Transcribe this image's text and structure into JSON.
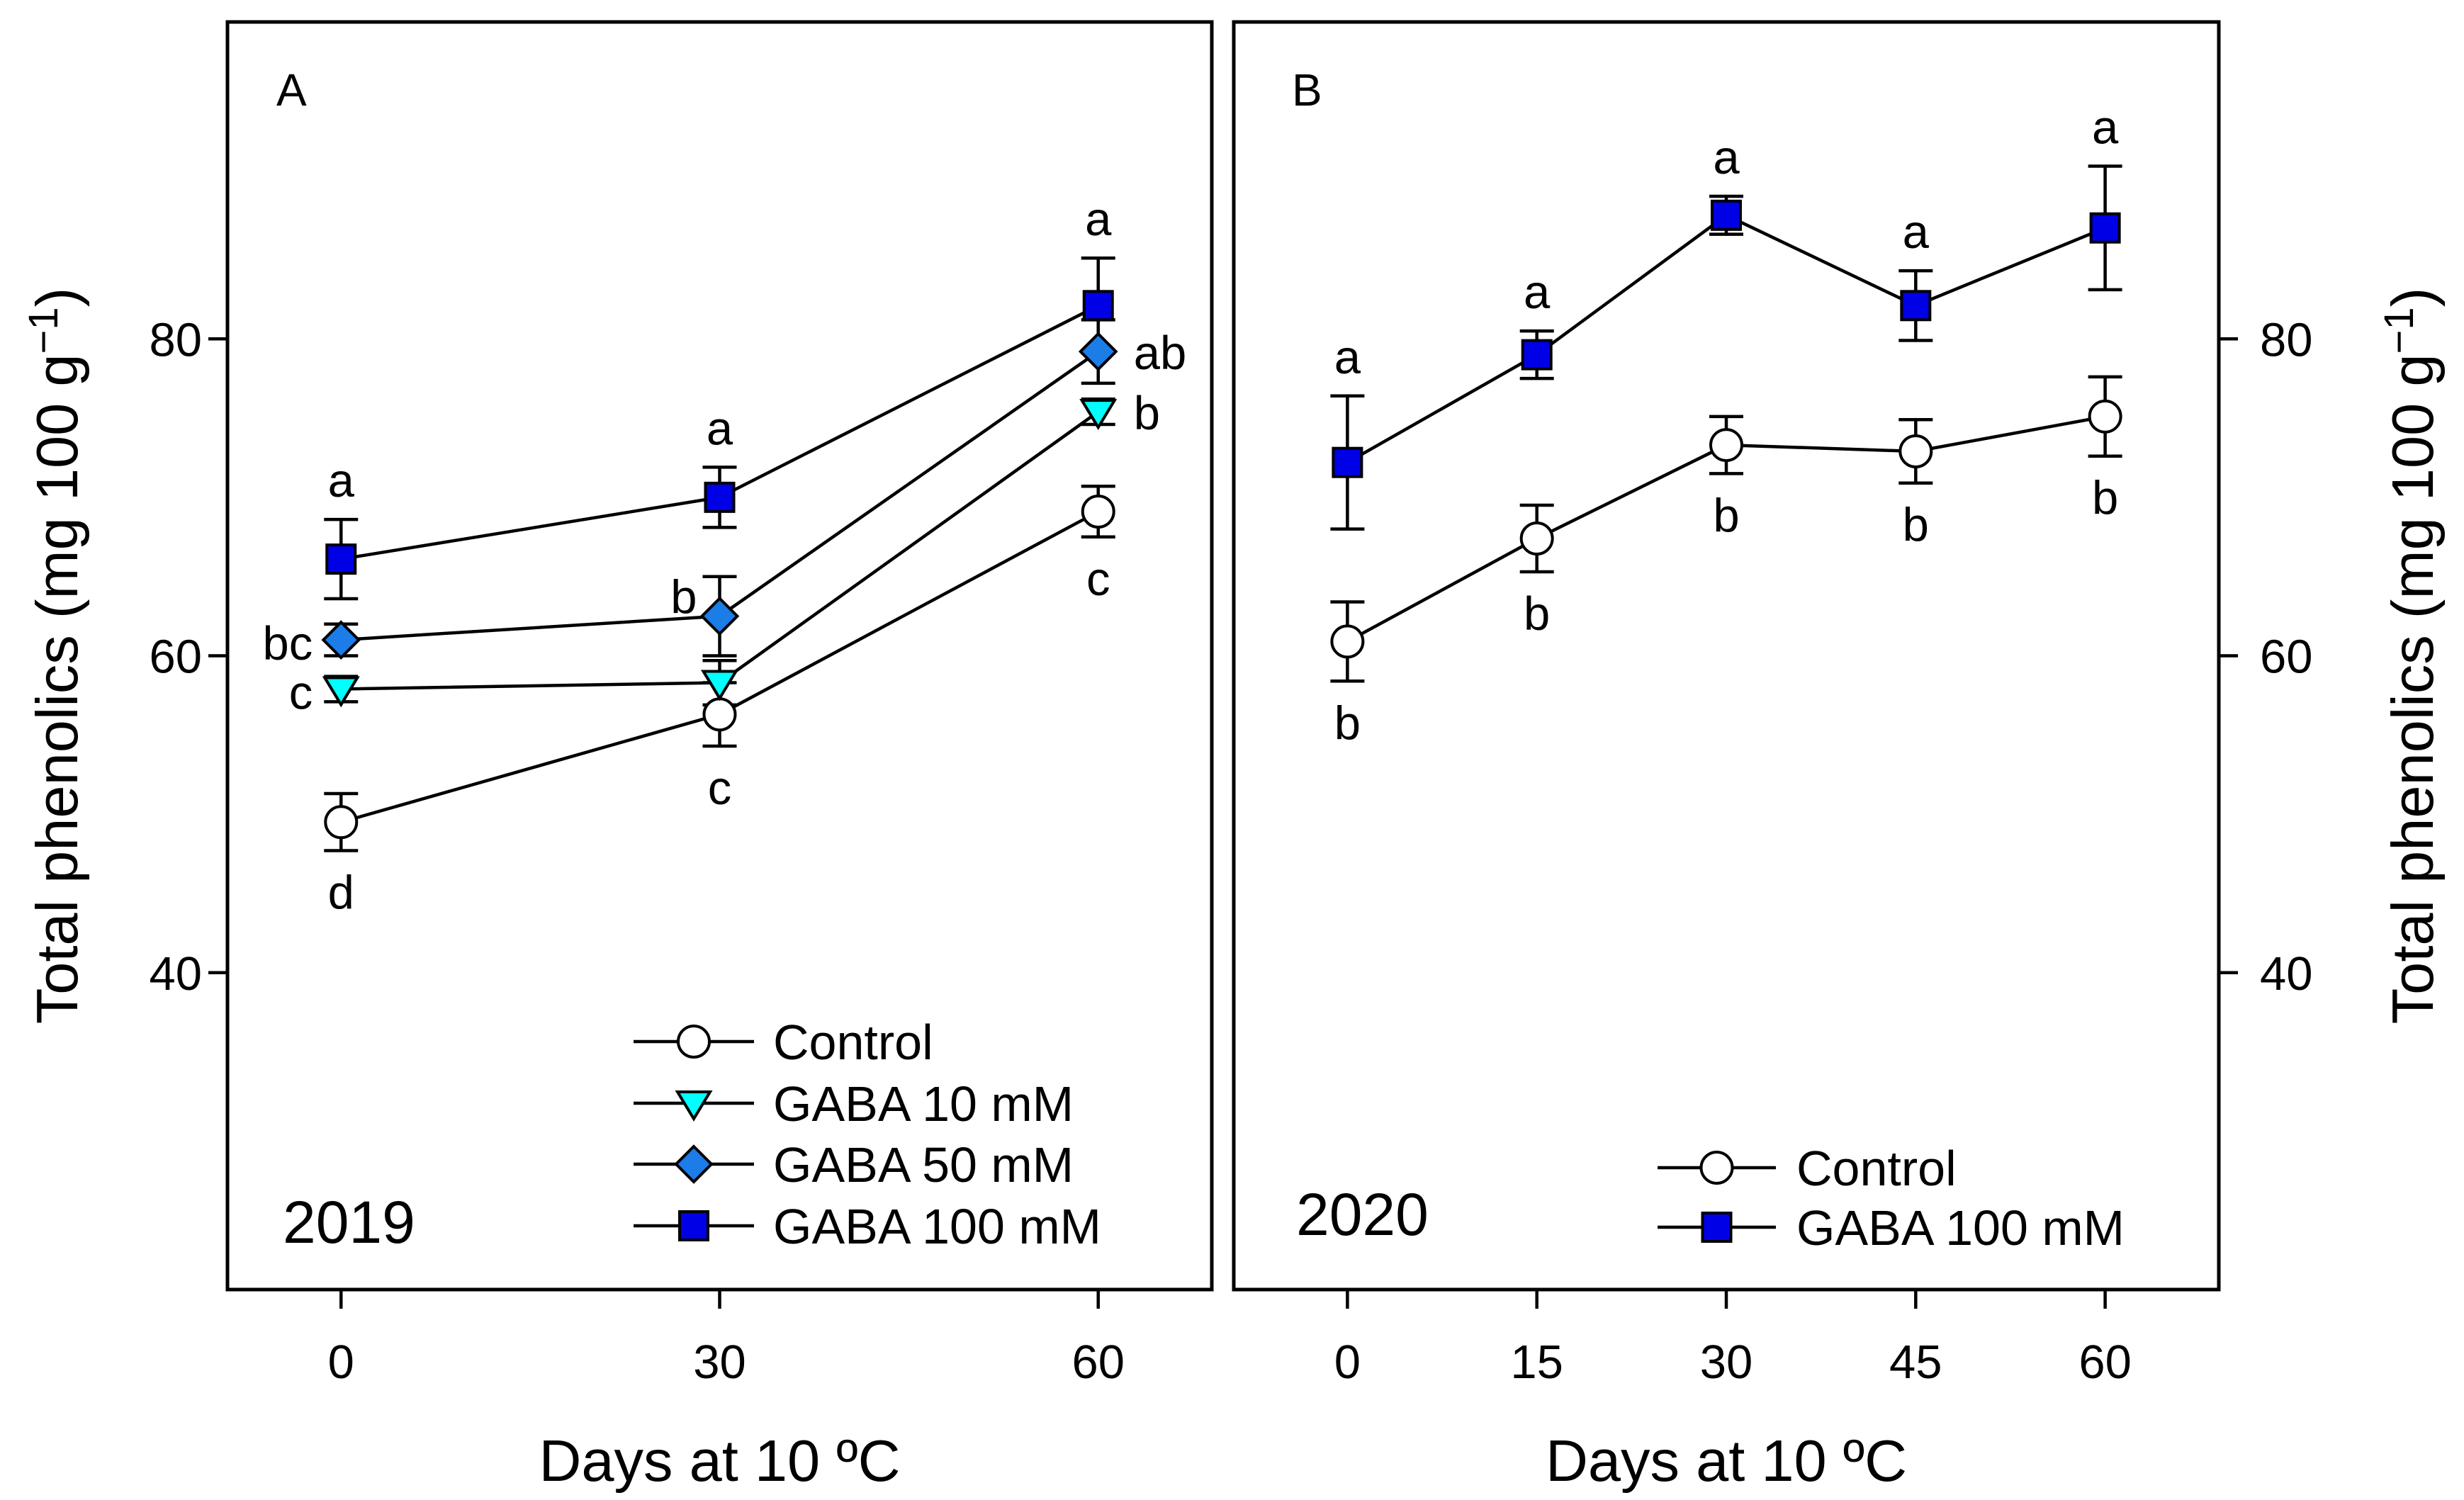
{
  "chart_data": [
    {
      "type": "line",
      "panel_label": "A",
      "annotation": "2019",
      "xlabel": "Days at 10 ºC",
      "ylabel": {
        "main": "Total phenolics (mg 100 g",
        "sup": "−1",
        "tail": ")"
      },
      "xlim": [
        -9,
        69
      ],
      "ylim": [
        20,
        100
      ],
      "xticks": [
        0,
        30,
        60
      ],
      "yticks": [
        40,
        60,
        80
      ],
      "grid": false,
      "legend_position": "bottom-right",
      "x": [
        0,
        30,
        60
      ],
      "series": [
        {
          "name": "Control",
          "marker": "circle",
          "fill": "#FFFFFF",
          "values": [
            49.5,
            56.3,
            69.1
          ],
          "errors": [
            1.8,
            2.0,
            1.6
          ],
          "letters": [
            "d",
            "c",
            "c"
          ]
        },
        {
          "name": "GABA 10 mM",
          "marker": "triangle-down",
          "fill": "#00FFFF",
          "values": [
            57.9,
            58.3,
            75.4
          ],
          "errors": [
            0.8,
            1.4,
            0.8
          ],
          "letters": [
            "c",
            null,
            "b"
          ]
        },
        {
          "name": "GABA 50 mM",
          "marker": "diamond",
          "fill": "#1C7CE8",
          "values": [
            61.0,
            62.5,
            79.2
          ],
          "errors": [
            1.0,
            2.5,
            2.0
          ],
          "letters": [
            "bc",
            "b",
            "ab"
          ]
        },
        {
          "name": "GABA 100 mM",
          "marker": "square",
          "fill": "#0000E6",
          "values": [
            66.1,
            70.0,
            82.1
          ],
          "errors": [
            2.5,
            1.9,
            3.0
          ],
          "letters": [
            "a",
            "a",
            "a"
          ]
        }
      ]
    },
    {
      "type": "line",
      "panel_label": "B",
      "annotation": "2020",
      "xlabel": "Days at 10 ºC",
      "ylabel": {
        "main": "Total phenolics (mg 100 g",
        "sup": "−1",
        "tail": ")"
      },
      "xlim": [
        -9,
        69
      ],
      "ylim": [
        20,
        100
      ],
      "xticks": [
        0,
        15,
        30,
        45,
        60
      ],
      "yticks": [
        40,
        60,
        80
      ],
      "grid": false,
      "legend_position": "bottom-right",
      "x": [
        0,
        15,
        30,
        45,
        60
      ],
      "series": [
        {
          "name": "Control",
          "marker": "circle",
          "fill": "#FFFFFF",
          "values": [
            60.9,
            67.4,
            73.3,
            72.9,
            75.1
          ],
          "errors": [
            2.5,
            2.1,
            1.8,
            2.0,
            2.5
          ],
          "letters": [
            "b",
            "b",
            "b",
            "b",
            "b"
          ]
        },
        {
          "name": "GABA 100 mM",
          "marker": "square",
          "fill": "#0000E6",
          "values": [
            72.2,
            79.0,
            87.8,
            82.1,
            87.0
          ],
          "errors": [
            4.2,
            1.5,
            1.2,
            2.2,
            3.9
          ],
          "letters": [
            "a",
            "a",
            "a",
            "a",
            "a"
          ]
        }
      ]
    }
  ]
}
